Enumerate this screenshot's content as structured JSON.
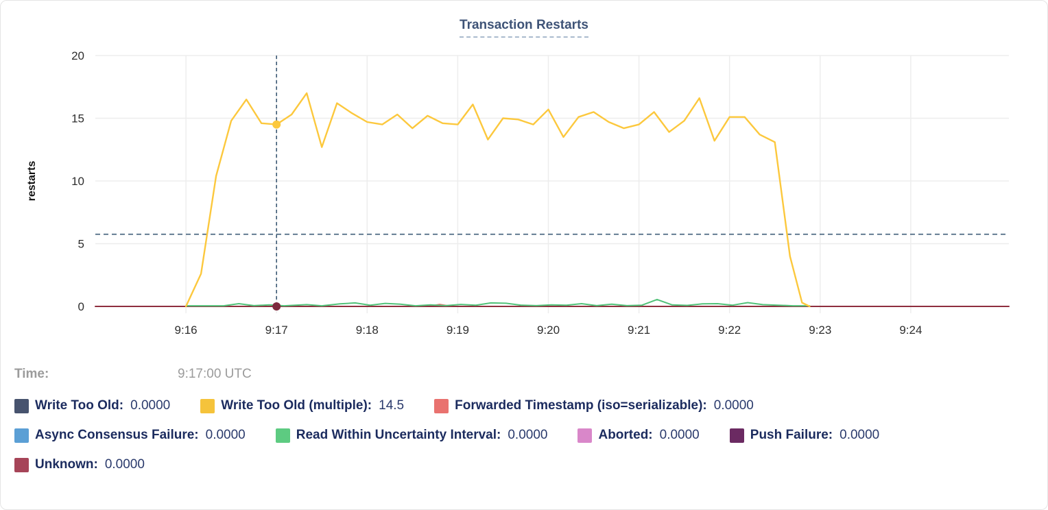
{
  "card": {
    "title": "Transaction Restarts"
  },
  "tooltip": {
    "time_label": "Time:",
    "time_value": "9:17:00 UTC",
    "rows": [
      [
        {
          "label": "Write Too Old:",
          "value": "0.0000",
          "color": "#47536e"
        },
        {
          "label": "Write Too Old (multiple):",
          "value": "14.5",
          "color": "#f5c33b"
        },
        {
          "label": "Forwarded Timestamp (iso=serializable):",
          "value": "0.0000",
          "color": "#e9726f"
        }
      ],
      [
        {
          "label": "Async Consensus Failure:",
          "value": "0.0000",
          "color": "#5b9fd5"
        },
        {
          "label": "Read Within Uncertainty Interval:",
          "value": "0.0000",
          "color": "#5dcb81"
        },
        {
          "label": "Aborted:",
          "value": "0.0000",
          "color": "#d987c9"
        },
        {
          "label": "Push Failure:",
          "value": "0.0000",
          "color": "#6b2a62"
        }
      ],
      [
        {
          "label": "Unknown:",
          "value": "0.0000",
          "color": "#a64458"
        }
      ]
    ]
  },
  "chart_data": {
    "type": "line",
    "title": "Transaction Restarts",
    "ylabel": "restarts",
    "ylim": [
      0,
      20
    ],
    "yticks": [
      0,
      5,
      10,
      15,
      20
    ],
    "x_domain_seconds_after_915": [
      0,
      605
    ],
    "xticks": [
      {
        "t": 60,
        "label": "9:16"
      },
      {
        "t": 120,
        "label": "9:17"
      },
      {
        "t": 180,
        "label": "9:18"
      },
      {
        "t": 240,
        "label": "9:19"
      },
      {
        "t": 300,
        "label": "9:20"
      },
      {
        "t": 360,
        "label": "9:21"
      },
      {
        "t": 420,
        "label": "9:22"
      },
      {
        "t": 480,
        "label": "9:23"
      },
      {
        "t": 540,
        "label": "9:24"
      }
    ],
    "grid": true,
    "reference_line_y": 5.75,
    "reference_line_color": "#4d6982",
    "hover": {
      "t": 120,
      "time": "9:17:00 UTC",
      "line_color": "#3d5a75",
      "points": [
        {
          "series": "Write Too Old (multiple)",
          "v": 14.5,
          "color": "#fcc83d"
        },
        {
          "series": "Unknown",
          "v": 0,
          "color": "#7e2a3d"
        }
      ]
    },
    "series": [
      {
        "name": "Write Too Old",
        "color": "#47536e",
        "values": [
          [
            60,
            0
          ],
          [
            473,
            0
          ]
        ]
      },
      {
        "name": "Async Consensus Failure",
        "color": "#5b9fd5",
        "values": [
          [
            60,
            0
          ],
          [
            473,
            0
          ]
        ]
      },
      {
        "name": "Aborted",
        "color": "#d987c9",
        "values": [
          [
            60,
            0
          ],
          [
            473,
            0
          ]
        ]
      },
      {
        "name": "Push Failure",
        "color": "#6b2a62",
        "values": [
          [
            60,
            0
          ],
          [
            473,
            0
          ]
        ]
      },
      {
        "name": "Forwarded Timestamp (iso=serializable)",
        "color": "#e9726f",
        "values": [
          [
            60,
            0
          ],
          [
            220,
            0
          ],
          [
            228,
            0.16
          ],
          [
            236,
            0
          ],
          [
            473,
            0
          ]
        ]
      },
      {
        "name": "Unknown",
        "color": "#8e2e3e",
        "values": [
          [
            0,
            0
          ],
          [
            605,
            0
          ]
        ]
      },
      {
        "name": "Read Within Uncertainty Interval",
        "color": "#50c178",
        "values": [
          [
            60,
            0.05
          ],
          [
            85,
            0.05
          ],
          [
            95,
            0.22
          ],
          [
            105,
            0.06
          ],
          [
            115,
            0.12
          ],
          [
            125,
            0.05
          ],
          [
            140,
            0.14
          ],
          [
            150,
            0.05
          ],
          [
            162,
            0.2
          ],
          [
            172,
            0.28
          ],
          [
            182,
            0.1
          ],
          [
            192,
            0.24
          ],
          [
            202,
            0.18
          ],
          [
            212,
            0.05
          ],
          [
            222,
            0.12
          ],
          [
            232,
            0.06
          ],
          [
            242,
            0.16
          ],
          [
            252,
            0.1
          ],
          [
            262,
            0.28
          ],
          [
            272,
            0.25
          ],
          [
            282,
            0.1
          ],
          [
            292,
            0.06
          ],
          [
            302,
            0.12
          ],
          [
            312,
            0.1
          ],
          [
            322,
            0.22
          ],
          [
            332,
            0.06
          ],
          [
            342,
            0.18
          ],
          [
            352,
            0.06
          ],
          [
            362,
            0.1
          ],
          [
            372,
            0.55
          ],
          [
            382,
            0.12
          ],
          [
            392,
            0.08
          ],
          [
            402,
            0.2
          ],
          [
            412,
            0.22
          ],
          [
            422,
            0.1
          ],
          [
            432,
            0.3
          ],
          [
            442,
            0.14
          ],
          [
            452,
            0.1
          ],
          [
            462,
            0.05
          ],
          [
            473,
            0.05
          ]
        ]
      },
      {
        "name": "Write Too Old (multiple)",
        "color": "#fcc83d",
        "values": [
          [
            60,
            0
          ],
          [
            70,
            2.6
          ],
          [
            80,
            10.4
          ],
          [
            90,
            14.8
          ],
          [
            100,
            16.5
          ],
          [
            110,
            14.6
          ],
          [
            120,
            14.5
          ],
          [
            130,
            15.3
          ],
          [
            140,
            17.0
          ],
          [
            150,
            12.7
          ],
          [
            160,
            16.2
          ],
          [
            170,
            15.4
          ],
          [
            180,
            14.7
          ],
          [
            190,
            14.5
          ],
          [
            200,
            15.3
          ],
          [
            210,
            14.2
          ],
          [
            220,
            15.2
          ],
          [
            230,
            14.6
          ],
          [
            240,
            14.5
          ],
          [
            250,
            16.1
          ],
          [
            260,
            13.3
          ],
          [
            270,
            15.0
          ],
          [
            280,
            14.9
          ],
          [
            290,
            14.5
          ],
          [
            300,
            15.7
          ],
          [
            310,
            13.5
          ],
          [
            320,
            15.1
          ],
          [
            330,
            15.5
          ],
          [
            340,
            14.7
          ],
          [
            350,
            14.2
          ],
          [
            360,
            14.5
          ],
          [
            370,
            15.5
          ],
          [
            380,
            13.9
          ],
          [
            390,
            14.8
          ],
          [
            400,
            16.6
          ],
          [
            410,
            13.2
          ],
          [
            420,
            15.1
          ],
          [
            430,
            15.1
          ],
          [
            440,
            13.7
          ],
          [
            450,
            13.1
          ],
          [
            460,
            4.0
          ],
          [
            468,
            0.3
          ],
          [
            473,
            0
          ]
        ]
      }
    ]
  }
}
